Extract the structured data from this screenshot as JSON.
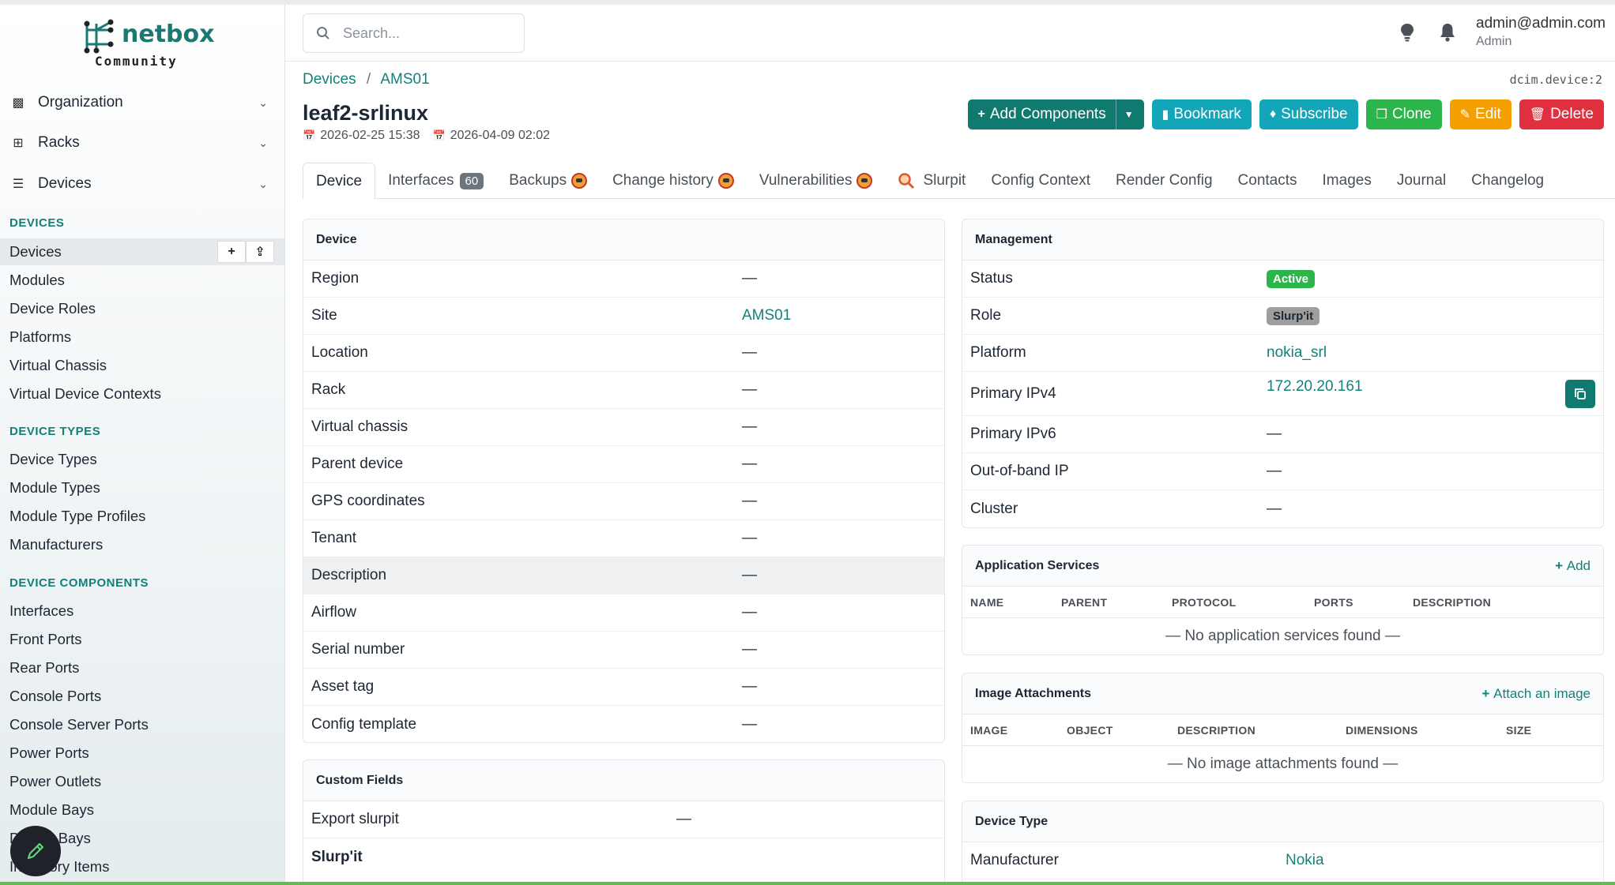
{
  "brand": {
    "name": "netbox",
    "edition": "Community"
  },
  "sidebar": {
    "groups": [
      {
        "label": "Organization",
        "icon": "building-icon"
      },
      {
        "label": "Racks",
        "icon": "rack-icon"
      },
      {
        "label": "Devices",
        "icon": "server-icon"
      }
    ],
    "sections": [
      {
        "title": "DEVICES",
        "items": [
          "Devices",
          "Modules",
          "Device Roles",
          "Platforms",
          "Virtual Chassis",
          "Virtual Device Contexts"
        ]
      },
      {
        "title": "DEVICE TYPES",
        "items": [
          "Device Types",
          "Module Types",
          "Module Type Profiles",
          "Manufacturers"
        ]
      },
      {
        "title": "DEVICE COMPONENTS",
        "items": [
          "Interfaces",
          "Front Ports",
          "Rear Ports",
          "Console Ports",
          "Console Server Ports",
          "Power Ports",
          "Power Outlets",
          "Module Bays",
          "Device Bays",
          "Inventory Items"
        ]
      }
    ],
    "active_item_add": "+",
    "active_item_import": "⇪"
  },
  "header": {
    "search_placeholder": "Search...",
    "user_email": "admin@admin.com",
    "user_role": "Admin"
  },
  "breadcrumb": {
    "root": "Devices",
    "sep": "/",
    "current": "AMS01"
  },
  "object_id": "dcim.device:2",
  "page": {
    "title": "leaf2-srlinux",
    "created": "2026-02-25 15:38",
    "updated": "2026-04-09 02:02"
  },
  "actions": {
    "add_components": "Add Components",
    "bookmark": "Bookmark",
    "subscribe": "Subscribe",
    "clone": "Clone",
    "edit": "Edit",
    "delete": "Delete"
  },
  "tabs": [
    {
      "label": "Device",
      "active": true
    },
    {
      "label": "Interfaces",
      "badge": "60"
    },
    {
      "label": "Backups",
      "icon": true
    },
    {
      "label": "Change history",
      "icon": true
    },
    {
      "label": "Vulnerabilities",
      "icon": true
    },
    {
      "label": "Slurpit",
      "prefix_icon": true
    },
    {
      "label": "Config Context"
    },
    {
      "label": "Render Config"
    },
    {
      "label": "Contacts"
    },
    {
      "label": "Images"
    },
    {
      "label": "Journal"
    },
    {
      "label": "Changelog"
    }
  ],
  "device_card": {
    "title": "Device",
    "rows": [
      {
        "label": "Region",
        "value": "—"
      },
      {
        "label": "Site",
        "value": "AMS01",
        "link": true
      },
      {
        "label": "Location",
        "value": "—"
      },
      {
        "label": "Rack",
        "value": "—"
      },
      {
        "label": "Virtual chassis",
        "value": "—"
      },
      {
        "label": "Parent device",
        "value": "—"
      },
      {
        "label": "GPS coordinates",
        "value": "—"
      },
      {
        "label": "Tenant",
        "value": "—"
      },
      {
        "label": "Description",
        "value": "—",
        "highlight": true
      },
      {
        "label": "Airflow",
        "value": "—"
      },
      {
        "label": "Serial number",
        "value": "—"
      },
      {
        "label": "Asset tag",
        "value": "—"
      },
      {
        "label": "Config template",
        "value": "—"
      }
    ]
  },
  "custom_fields_card": {
    "title": "Custom Fields",
    "rows": [
      {
        "label": "Export slurpit",
        "value": "—"
      }
    ],
    "group_label": "Slurp'it"
  },
  "management_card": {
    "title": "Management",
    "status_label": "Status",
    "status_value": "Active",
    "status_color": "#2bb54b",
    "role_label": "Role",
    "role_value": "Slurp'it",
    "platform_label": "Platform",
    "platform_value": "nokia_srl",
    "ipv4_label": "Primary IPv4",
    "ipv4_value": "172.20.20.161",
    "ipv6_label": "Primary IPv6",
    "ipv6_value": "—",
    "oob_label": "Out-of-band IP",
    "oob_value": "—",
    "cluster_label": "Cluster",
    "cluster_value": "—"
  },
  "app_services_card": {
    "title": "Application Services",
    "action": "Add",
    "columns": [
      "NAME",
      "PARENT",
      "PROTOCOL",
      "PORTS",
      "DESCRIPTION"
    ],
    "empty": "— No application services found —"
  },
  "image_attachments_card": {
    "title": "Image Attachments",
    "action": "Attach an image",
    "columns": [
      "IMAGE",
      "OBJECT",
      "DESCRIPTION",
      "DIMENSIONS",
      "SIZE"
    ],
    "empty": "— No image attachments found —"
  },
  "device_type_card": {
    "title": "Device Type",
    "manufacturer_label": "Manufacturer",
    "manufacturer_value": "Nokia"
  }
}
